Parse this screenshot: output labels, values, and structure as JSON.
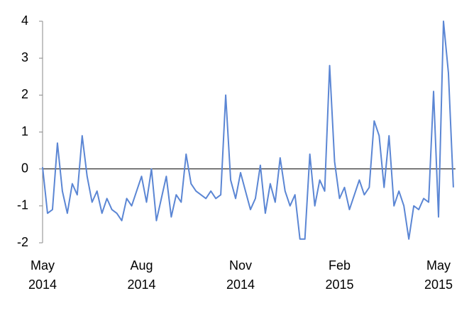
{
  "chart_data": {
    "type": "line",
    "categories": [
      "May 2014",
      null,
      null,
      null,
      null,
      null,
      null,
      null,
      null,
      null,
      null,
      null,
      null,
      null,
      null,
      null,
      null,
      null,
      null,
      null,
      "Aug 2014",
      null,
      null,
      null,
      null,
      null,
      null,
      null,
      null,
      null,
      null,
      null,
      null,
      null,
      null,
      null,
      null,
      null,
      null,
      null,
      "Nov 2014",
      null,
      null,
      null,
      null,
      null,
      null,
      null,
      null,
      null,
      null,
      null,
      null,
      null,
      null,
      null,
      null,
      null,
      null,
      null,
      "Feb 2015",
      null,
      null,
      null,
      null,
      null,
      null,
      null,
      null,
      null,
      null,
      null,
      null,
      null,
      null,
      null,
      null,
      null,
      null,
      null,
      "May 2015",
      null,
      null,
      null
    ],
    "series": [
      {
        "color": "#5b86d4",
        "values": [
          0.05,
          -1.2,
          -1.1,
          0.7,
          -0.6,
          -1.2,
          -0.4,
          -0.7,
          0.9,
          -0.2,
          -0.9,
          -0.6,
          -1.2,
          -0.8,
          -1.1,
          -1.2,
          -1.4,
          -0.8,
          -1.0,
          -0.6,
          -0.2,
          -0.9,
          0.0,
          -1.4,
          -0.8,
          -0.2,
          -1.3,
          -0.7,
          -0.9,
          0.4,
          -0.4,
          -0.6,
          -0.7,
          -0.8,
          -0.6,
          -0.8,
          -0.7,
          2.0,
          -0.3,
          -0.8,
          -0.1,
          -0.6,
          -1.1,
          -0.8,
          0.1,
          -1.2,
          -0.4,
          -0.9,
          0.3,
          -0.6,
          -1.0,
          -0.7,
          -1.9,
          -1.9,
          0.4,
          -1.0,
          -0.3,
          -0.6,
          2.8,
          0.2,
          -0.8,
          -0.5,
          -1.1,
          -0.7,
          -0.3,
          -0.7,
          -0.5,
          1.3,
          0.9,
          -0.5,
          0.9,
          -1.0,
          -0.6,
          -1.0,
          -1.9,
          -1.0,
          -1.1,
          -0.8,
          -0.9,
          2.1,
          -1.3,
          4.0,
          2.6,
          -0.5
        ]
      }
    ],
    "ylim": [
      -2,
      4
    ],
    "yticks": [
      -2,
      -1,
      0,
      1,
      2,
      3,
      4
    ]
  }
}
